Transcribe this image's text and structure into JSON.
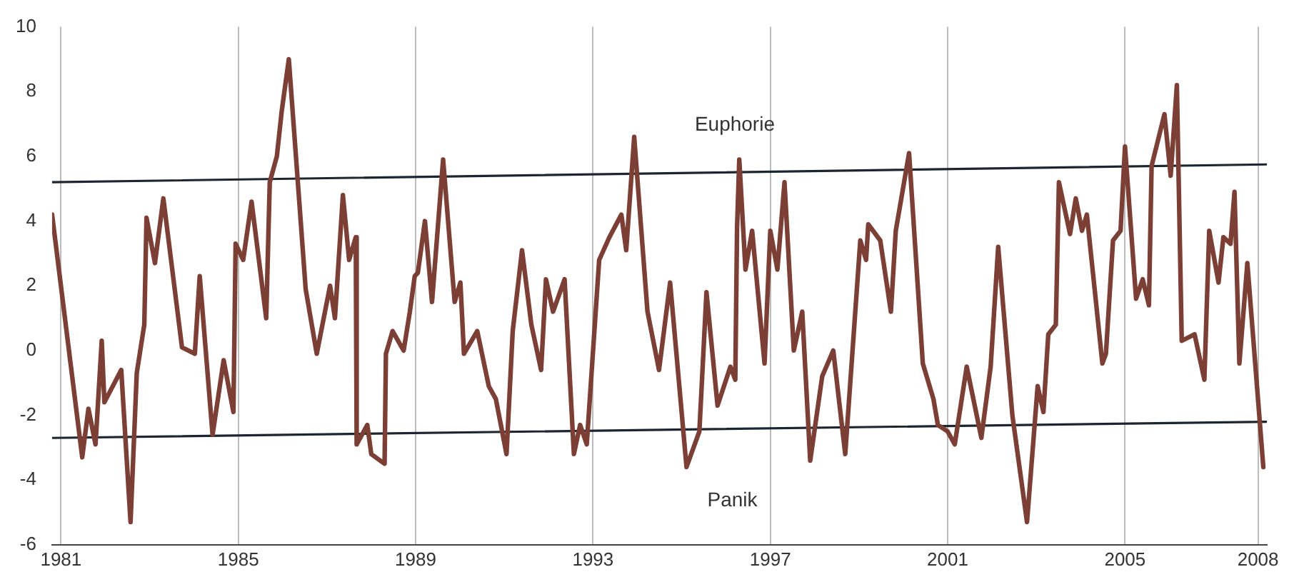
{
  "chart_data": {
    "type": "line",
    "xlim": [
      1980.8,
      2008.2
    ],
    "xticks": [
      1981,
      1985,
      1989,
      1993,
      1997,
      2001,
      2005,
      2008
    ],
    "ylim": [
      -6,
      10
    ],
    "yticks": [
      -6,
      -4,
      -2,
      0,
      2,
      4,
      6,
      8,
      10
    ],
    "grid": "x",
    "legend": false,
    "marker": "none",
    "line_style": "solid",
    "annotations": [
      "Euphorie",
      "Panik"
    ],
    "series": [
      {
        "color": "#7b3f35",
        "x": [
          1980.8,
          1981.48,
          1981.62,
          1981.78,
          1981.92,
          1981.98,
          1982.36,
          1982.57,
          1982.71,
          1982.88,
          1982.93,
          1983.12,
          1983.31,
          1983.73,
          1984.02,
          1984.13,
          1984.42,
          1984.67,
          1984.89,
          1984.94,
          1985.11,
          1985.3,
          1985.63,
          1985.71,
          1985.87,
          1985.98,
          1986.14,
          1986.52,
          1986.77,
          1987.07,
          1987.18,
          1987.36,
          1987.5,
          1987.65,
          1987.67,
          1987.91,
          1988.0,
          1988.3,
          1988.33,
          1988.48,
          1988.73,
          1988.87,
          1988.98,
          1989.05,
          1989.21,
          1989.37,
          1989.62,
          1989.88,
          1990.01,
          1990.09,
          1990.39,
          1990.65,
          1990.81,
          1991.05,
          1991.19,
          1991.4,
          1991.61,
          1991.83,
          1991.94,
          1992.1,
          1992.36,
          1992.57,
          1992.71,
          1992.86,
          1993.14,
          1993.37,
          1993.64,
          1993.75,
          1993.93,
          1994.23,
          1994.49,
          1994.74,
          1995.11,
          1995.4,
          1995.56,
          1995.81,
          1996.1,
          1996.21,
          1996.25,
          1996.3,
          1996.44,
          1996.59,
          1996.87,
          1997.0,
          1997.16,
          1997.32,
          1997.53,
          1997.72,
          1997.9,
          1998.17,
          1998.42,
          1998.69,
          1999.03,
          1999.16,
          1999.21,
          1999.48,
          1999.72,
          1999.83,
          2000.13,
          2000.44,
          2000.68,
          2000.78,
          2001.0,
          2001.16,
          2001.43,
          2001.76,
          2001.97,
          2002.14,
          2002.46,
          2002.79,
          2003.03,
          2003.16,
          2003.27,
          2003.44,
          2003.51,
          2003.76,
          2003.89,
          2004.03,
          2004.14,
          2004.49,
          2004.57,
          2004.73,
          2004.9,
          2005.0,
          2005.25,
          2005.4,
          2005.54,
          2005.6,
          2005.89,
          2006.03,
          2006.17,
          2006.28,
          2006.57,
          2006.79,
          2006.9,
          2007.11,
          2007.22,
          2007.38,
          2007.47,
          2007.58,
          2007.76,
          2008.12
        ],
        "values": [
          4.2,
          -3.3,
          -1.8,
          -2.9,
          0.3,
          -1.6,
          -0.6,
          -5.3,
          -0.7,
          0.8,
          4.1,
          2.7,
          4.7,
          0.1,
          -0.1,
          2.3,
          -2.6,
          -0.3,
          -1.9,
          3.3,
          2.8,
          4.6,
          1.0,
          5.2,
          6.0,
          7.4,
          9.0,
          1.9,
          -0.1,
          2.0,
          1.0,
          4.8,
          2.8,
          3.5,
          -2.9,
          -2.3,
          -3.2,
          -3.5,
          -0.1,
          0.6,
          0.0,
          1.2,
          2.3,
          2.4,
          4.0,
          1.5,
          5.9,
          1.5,
          2.1,
          -0.1,
          0.6,
          -1.1,
          -1.5,
          -3.2,
          0.6,
          3.1,
          0.8,
          -0.6,
          2.2,
          1.2,
          2.2,
          -3.2,
          -2.3,
          -2.9,
          2.8,
          3.5,
          4.2,
          3.1,
          6.6,
          1.2,
          -0.6,
          2.1,
          -3.6,
          -2.5,
          1.8,
          -1.7,
          -0.5,
          -0.9,
          3.8,
          5.9,
          2.5,
          3.7,
          -0.4,
          3.7,
          2.5,
          5.2,
          0.0,
          1.2,
          -3.4,
          -0.8,
          0.0,
          -3.2,
          3.4,
          2.8,
          3.9,
          3.4,
          1.2,
          3.7,
          6.1,
          -0.4,
          -1.5,
          -2.3,
          -2.5,
          -2.9,
          -0.5,
          -2.7,
          -0.5,
          3.2,
          -2.0,
          -5.3,
          -1.1,
          -1.9,
          0.5,
          0.8,
          5.2,
          3.6,
          4.7,
          3.7,
          4.2,
          -0.4,
          -0.1,
          3.4,
          3.7,
          6.3,
          1.6,
          2.2,
          1.4,
          5.7,
          7.3,
          5.4,
          8.2,
          0.3,
          0.5,
          -0.9,
          3.7,
          2.1,
          3.5,
          3.3,
          4.9,
          -0.4,
          2.7,
          -3.6
        ]
      },
      {
        "type": "line",
        "color": "#1c2630",
        "x": [
          1980.8,
          2008.2
        ],
        "values": [
          5.2,
          5.75
        ]
      },
      {
        "type": "line",
        "color": "#1c2630",
        "x": [
          1980.8,
          2008.2
        ],
        "values": [
          -2.7,
          -2.2
        ]
      }
    ]
  }
}
